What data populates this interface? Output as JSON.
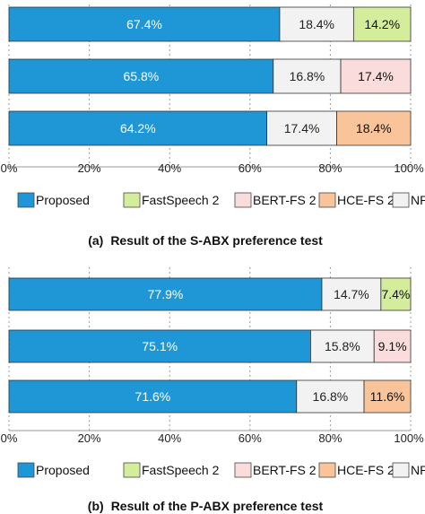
{
  "chart_data": [
    {
      "type": "bar",
      "orientation": "horizontal",
      "stacked": true,
      "title": "Result of the S-ABX preference test",
      "caption_prefix": "(a)",
      "xlim": [
        0,
        100
      ],
      "x_ticks": [
        "0%",
        "20%",
        "40%",
        "60%",
        "80%",
        "100%"
      ],
      "grid": true,
      "rows": [
        {
          "segments": [
            {
              "series": "Proposed",
              "value": 67.4,
              "label": "67.4%"
            },
            {
              "series": "NP",
              "value": 18.4,
              "label": "18.4%"
            },
            {
              "series": "FastSpeech 2",
              "value": 14.2,
              "label": "14.2%"
            }
          ]
        },
        {
          "segments": [
            {
              "series": "Proposed",
              "value": 65.8,
              "label": "65.8%"
            },
            {
              "series": "NP",
              "value": 16.8,
              "label": "16.8%"
            },
            {
              "series": "BERT-FS 2",
              "value": 17.4,
              "label": "17.4%"
            }
          ]
        },
        {
          "segments": [
            {
              "series": "Proposed",
              "value": 64.2,
              "label": "64.2%"
            },
            {
              "series": "NP",
              "value": 17.4,
              "label": "17.4%"
            },
            {
              "series": "HCE-FS 2",
              "value": 18.4,
              "label": "18.4%"
            }
          ]
        }
      ]
    },
    {
      "type": "bar",
      "orientation": "horizontal",
      "stacked": true,
      "title": "Result of the P-ABX preference test",
      "caption_prefix": "(b)",
      "xlim": [
        0,
        100
      ],
      "x_ticks": [
        "0%",
        "20%",
        "40%",
        "60%",
        "80%",
        "100%"
      ],
      "grid": true,
      "rows": [
        {
          "segments": [
            {
              "series": "Proposed",
              "value": 77.9,
              "label": "77.9%"
            },
            {
              "series": "NP",
              "value": 14.7,
              "label": "14.7%"
            },
            {
              "series": "FastSpeech 2",
              "value": 7.4,
              "label": "7.4%"
            }
          ]
        },
        {
          "segments": [
            {
              "series": "Proposed",
              "value": 75.1,
              "label": "75.1%"
            },
            {
              "series": "NP",
              "value": 15.8,
              "label": "15.8%"
            },
            {
              "series": "BERT-FS 2",
              "value": 9.1,
              "label": "9.1%"
            }
          ]
        },
        {
          "segments": [
            {
              "series": "Proposed",
              "value": 71.6,
              "label": "71.6%"
            },
            {
              "series": "NP",
              "value": 16.8,
              "label": "16.8%"
            },
            {
              "series": "HCE-FS 2",
              "value": 11.6,
              "label": "11.6%"
            }
          ]
        }
      ]
    }
  ],
  "legend": {
    "placement": "bottom",
    "items": [
      {
        "name": "Proposed",
        "color": "#1f96d6"
      },
      {
        "name": "FastSpeech 2",
        "color": "#d4ed9c"
      },
      {
        "name": "BERT-FS 2",
        "color": "#fbdcdc"
      },
      {
        "name": "HCE-FS 2",
        "color": "#f9c49a"
      },
      {
        "name": "NP",
        "color": "#f2f2f2"
      }
    ]
  },
  "label_colors": {
    "Proposed": "#ffffff",
    "NP": "#222222",
    "FastSpeech 2": "#111111",
    "BERT-FS 2": "#111111",
    "HCE-FS 2": "#111111"
  }
}
